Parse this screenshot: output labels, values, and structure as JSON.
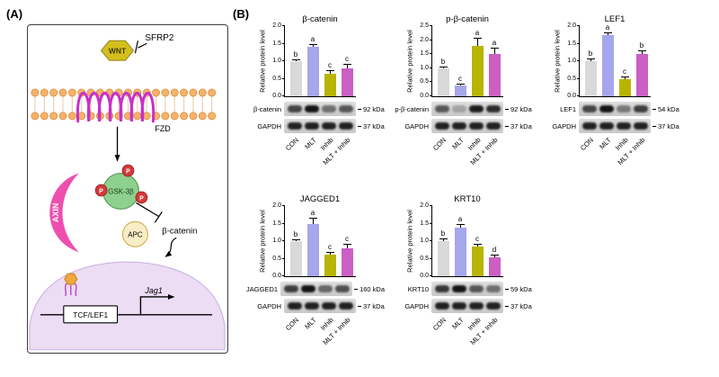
{
  "figure": {
    "panel_a_label": "(A)",
    "panel_b_label": "(B)"
  },
  "panel_a": {
    "sfrp2_label": "SFRP2",
    "wnt_label": "WNT",
    "fzd_label": "FZD",
    "gsk3b_label": "GSK-3β",
    "phospho_label": "P",
    "axin_label": "AXIN",
    "apc_label": "APC",
    "beta_catenin_label": "β-catenin",
    "jag1_label": "Jag1",
    "tcf_lef1_label": "TCF/LEF1",
    "colors": {
      "wnt": "#d4bf1e",
      "fzd": "#c92fc9",
      "gsk": "#8ed08e",
      "phospho": "#d03a3a",
      "axin": "#ee4fae",
      "apc": "#f8edc6",
      "nucleus": "#ecdcf4"
    }
  },
  "bar_colors": [
    "#d9d9d9",
    "#a6a6ec",
    "#b8b404",
    "#cb5fc4"
  ],
  "chart_data": [
    {
      "type": "bar",
      "title": "β-catenin",
      "ylabel": "Relative protein level",
      "ylim": [
        0,
        2.0
      ],
      "yticks": [
        0,
        0.5,
        1.0,
        1.5,
        2.0
      ],
      "categories": [
        "CON",
        "MLT",
        "Inhib",
        "MLT + Inhib"
      ],
      "values": [
        1.0,
        1.42,
        0.65,
        0.8
      ],
      "errors": [
        0.06,
        0.08,
        0.1,
        0.12
      ],
      "letters": [
        "b",
        "a",
        "c",
        "c"
      ],
      "blot": {
        "label": "β-catenin",
        "kda": "92 kDa",
        "bands": [
          0.7,
          1.0,
          0.45,
          0.6
        ]
      },
      "loading": {
        "label": "GAPDH",
        "kda": "37 kDa",
        "bands": [
          0.92,
          0.92,
          0.92,
          0.92
        ]
      }
    },
    {
      "type": "bar",
      "title": "p-β-catenin",
      "ylabel": "Relative protein level",
      "ylim": [
        0,
        2.5
      ],
      "yticks": [
        0,
        0.5,
        1.0,
        1.5,
        2.0,
        2.5
      ],
      "categories": [
        "CON",
        "MLT",
        "Inhib",
        "MLT + Inhib"
      ],
      "values": [
        1.0,
        0.38,
        1.78,
        1.52
      ],
      "errors": [
        0.07,
        0.05,
        0.3,
        0.22
      ],
      "letters": [
        "b",
        "c",
        "a",
        "a"
      ],
      "blot": {
        "label": "p-β-catenin",
        "kda": "92 kDa",
        "bands": [
          0.6,
          0.15,
          0.95,
          0.85
        ]
      },
      "loading": {
        "label": "GAPDH",
        "kda": "37 kDa",
        "bands": [
          0.92,
          0.92,
          0.92,
          0.92
        ]
      }
    },
    {
      "type": "bar",
      "title": "LEF1",
      "ylabel": "Relative protein level",
      "ylim": [
        0,
        2.0
      ],
      "yticks": [
        0,
        0.5,
        1.0,
        1.5,
        2.0
      ],
      "categories": [
        "CON",
        "MLT",
        "Inhib",
        "MLT + Inhib"
      ],
      "values": [
        1.0,
        1.75,
        0.5,
        1.2
      ],
      "errors": [
        0.08,
        0.08,
        0.06,
        0.12
      ],
      "letters": [
        "b",
        "a",
        "c",
        "b"
      ],
      "blot": {
        "label": "LEF1",
        "kda": "54 kDa",
        "bands": [
          0.7,
          1.0,
          0.4,
          0.75
        ]
      },
      "loading": {
        "label": "GAPDH",
        "kda": "37 kDa",
        "bands": [
          0.92,
          0.92,
          0.92,
          0.92
        ]
      }
    },
    {
      "type": "bar",
      "title": "JAGGED1",
      "ylabel": "Relative protein level",
      "ylim": [
        0,
        2.0
      ],
      "yticks": [
        0,
        0.5,
        1.0,
        1.5,
        2.0
      ],
      "categories": [
        "CON",
        "MLT",
        "Inhib",
        "MLT + Inhib"
      ],
      "values": [
        1.0,
        1.48,
        0.62,
        0.8
      ],
      "errors": [
        0.06,
        0.18,
        0.08,
        0.12
      ],
      "letters": [
        "b",
        "a",
        "c",
        "c"
      ],
      "blot": {
        "label": "JAGGED1",
        "kda": "160 kDa",
        "bands": [
          0.75,
          1.0,
          0.5,
          0.65
        ]
      },
      "loading": {
        "label": "GAPDH",
        "kda": "37 kDa",
        "bands": [
          0.92,
          0.92,
          0.92,
          0.92
        ]
      }
    },
    {
      "type": "bar",
      "title": "KRT10",
      "ylabel": "Relative protein level",
      "ylim": [
        0,
        2.0
      ],
      "yticks": [
        0,
        0.5,
        1.0,
        1.5,
        2.0
      ],
      "categories": [
        "CON",
        "MLT",
        "Inhib",
        "MLT + Inhib"
      ],
      "values": [
        1.0,
        1.38,
        0.85,
        0.55
      ],
      "errors": [
        0.07,
        0.12,
        0.08,
        0.06
      ],
      "letters": [
        "b",
        "a",
        "c",
        "d"
      ],
      "blot": {
        "label": "KRT10",
        "kda": "59 kDa",
        "bands": [
          0.8,
          1.0,
          0.6,
          0.45
        ]
      },
      "loading": {
        "label": "GAPDH",
        "kda": "37 kDa",
        "bands": [
          0.92,
          0.92,
          0.92,
          0.92
        ]
      }
    }
  ]
}
